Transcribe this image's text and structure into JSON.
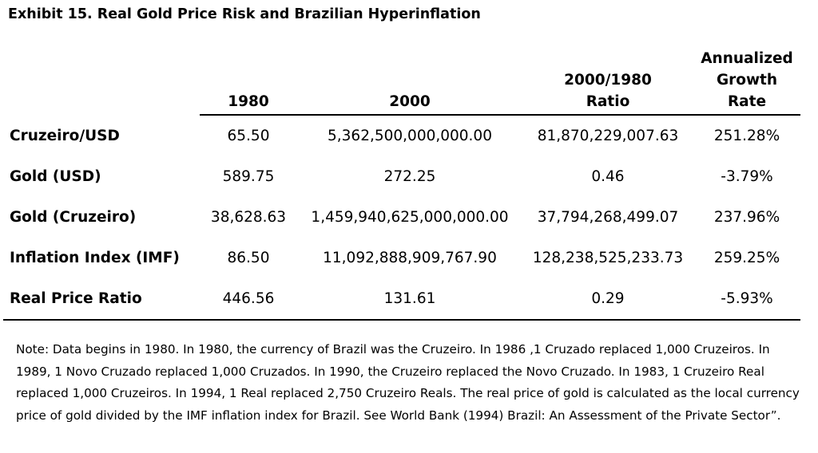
{
  "title": "Exhibit 15. Real Gold Price Risk and Brazilian Hyperinflation",
  "headers": {
    "col1980": "1980",
    "col2000": "2000",
    "ratio_line1": "2000/1980",
    "ratio_line2": "Ratio",
    "growth_line1": "Annualized",
    "growth_line2": "Growth",
    "growth_line3": "Rate"
  },
  "rows": [
    {
      "label": "Cruzeiro/USD",
      "v1980": "65.50",
      "v2000": "5,362,500,000,000.00",
      "ratio": "81,870,229,007.63",
      "growth": "251.28%"
    },
    {
      "label": "Gold (USD)",
      "v1980": "589.75",
      "v2000": "272.25",
      "ratio": "0.46",
      "growth": "-3.79%"
    },
    {
      "label": "Gold (Cruzeiro)",
      "v1980": "38,628.63",
      "v2000": "1,459,940,625,000,000.00",
      "ratio": "37,794,268,499.07",
      "growth": "237.96%"
    },
    {
      "label": "Inflation Index (IMF)",
      "v1980": "86.50",
      "v2000": "11,092,888,909,767.90",
      "ratio": "128,238,525,233.73",
      "growth": "259.25%"
    },
    {
      "label": "Real Price Ratio",
      "v1980": "446.56",
      "v2000": "131.61",
      "ratio": "0.29",
      "growth": "-5.93%"
    }
  ],
  "note": "Note: Data begins in 1980. In 1980, the currency of Brazil was the Cruzeiro. In 1986 ,1 Cruzado replaced 1,000 Cruzeiros. In 1989, 1 Novo Cruzado replaced 1,000 Cruzados. In 1990, the Cruzeiro replaced the Novo Cruzado. In 1983, 1 Cruzeiro Real replaced 1,000 Cruzeiros. In 1994, 1 Real replaced 2,750 Cruzeiro Reals. The real price of gold is calculated as the local currency price of gold divided by the IMF inflation index for Brazil. See World Bank (1994) Brazil: An Assessment of the Private Sector”."
}
